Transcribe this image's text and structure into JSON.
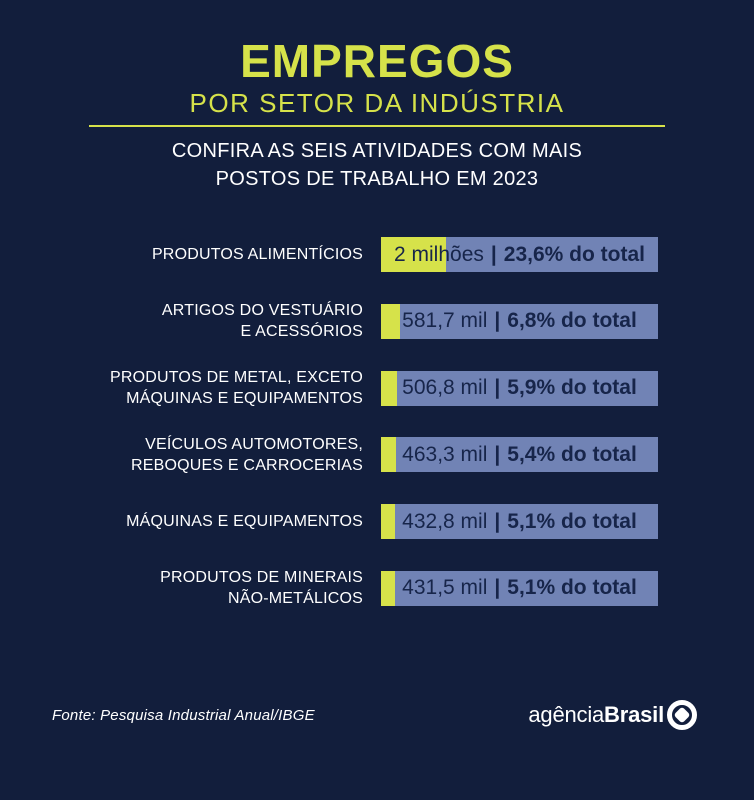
{
  "header": {
    "title": "EMPREGOS",
    "subtitle": "POR SETOR DA INDÚSTRIA",
    "intro": "CONFIRA AS SEIS ATIVIDADES COM MAIS\nPOSTOS DE TRABALHO EM 2023"
  },
  "chart_data": {
    "type": "bar",
    "orientation": "horizontal",
    "title": "EMPREGOS POR SETOR DA INDÚSTRIA",
    "subtitle": "CONFIRA AS SEIS ATIVIDADES COM MAIS POSTOS DE TRABALHO EM 2023",
    "year": 2023,
    "unit": "postos de trabalho",
    "separator": "|",
    "categories": [
      "PRODUTOS ALIMENTÍCIOS",
      "ARTIGOS DO VESTUÁRIO\nE ACESSÓRIOS",
      "PRODUTOS DE METAL, EXCETO\nMÁQUINAS E EQUIPAMENTOS",
      "VEÍCULOS AUTOMOTORES,\nREBOQUES E CARROCERIAS",
      "MÁQUINAS E EQUIPAMENTOS",
      "PRODUTOS DE MINERAIS\nNÃO-METÁLICOS"
    ],
    "values_jobs": [
      2000000,
      581700,
      506800,
      463300,
      432800,
      431500
    ],
    "value_labels": [
      "2 milhões",
      "581,7 mil",
      "506,8 mil",
      "463,3 mil",
      "432,8 mil",
      "431,5 mil"
    ],
    "share_pct": [
      23.6,
      6.8,
      5.9,
      5.4,
      5.1,
      5.1
    ],
    "share_labels": [
      "23,6% do total",
      "6,8% do total",
      "5,9% do total",
      "5,4% do total",
      "5,1% do total",
      "5,1% do total"
    ],
    "xlim_pct": [
      0,
      100
    ],
    "grid": false,
    "legend": false
  },
  "footer": {
    "source": "Fonte: Pesquisa Industrial Anual/IBGE",
    "brand": {
      "regular": "agência",
      "bold": "Brasil"
    }
  },
  "colors": {
    "background": "#121E3C",
    "accent_lime": "#D6E24A",
    "bar_blue": "#7183B5",
    "bar_text": "#17254A",
    "text_white": "#FFFFFF"
  }
}
